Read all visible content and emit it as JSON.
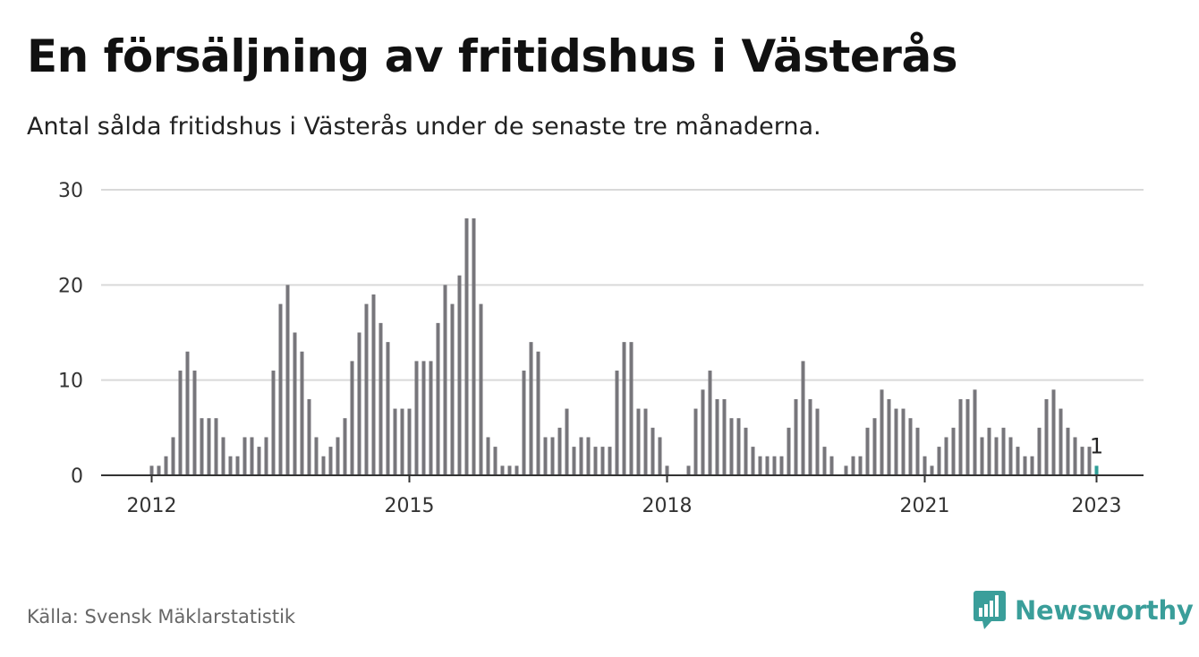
{
  "header": {
    "title": "En försäljning av fritidshus i Västerås",
    "subtitle": "Antal sålda fritidshus i Västerås under de senaste tre månaderna."
  },
  "footer": {
    "source": "Källa: Svensk Mäklarstatistik",
    "brand": "Newsworthy",
    "brand_icon": "newsworthy-logo-icon"
  },
  "colors": {
    "bar": "#77767b",
    "highlight": "#2e9e97",
    "grid": "#d9d9d9",
    "axis": "#333333",
    "brand": "#3a9e9a"
  },
  "chart_data": {
    "type": "bar",
    "start": "2012-01",
    "values": [
      1,
      1,
      2,
      4,
      11,
      13,
      11,
      6,
      6,
      6,
      4,
      2,
      2,
      4,
      4,
      3,
      4,
      11,
      18,
      20,
      15,
      13,
      8,
      4,
      2,
      3,
      4,
      6,
      12,
      15,
      18,
      19,
      16,
      14,
      7,
      7,
      7,
      12,
      12,
      12,
      16,
      20,
      18,
      21,
      27,
      27,
      18,
      4,
      3,
      1,
      1,
      1,
      11,
      14,
      13,
      4,
      4,
      5,
      7,
      3,
      4,
      4,
      3,
      3,
      3,
      11,
      14,
      14,
      7,
      7,
      5,
      4,
      1,
      0,
      0,
      1,
      7,
      9,
      11,
      8,
      8,
      6,
      6,
      5,
      3,
      2,
      2,
      2,
      2,
      5,
      8,
      12,
      8,
      7,
      3,
      2,
      0,
      1,
      2,
      2,
      5,
      6,
      9,
      8,
      7,
      7,
      6,
      5,
      2,
      1,
      3,
      4,
      5,
      8,
      8,
      9,
      4,
      5,
      4,
      5,
      4,
      3,
      2,
      2,
      5,
      8,
      9,
      7,
      5,
      4,
      3,
      3,
      1
    ],
    "x_ticks": [
      "2012",
      "2015",
      "2018",
      "2021",
      "2023"
    ],
    "y_ticks": [
      0,
      10,
      20,
      30
    ],
    "ylim": [
      0,
      30
    ],
    "last_label": "1",
    "grid": true
  }
}
